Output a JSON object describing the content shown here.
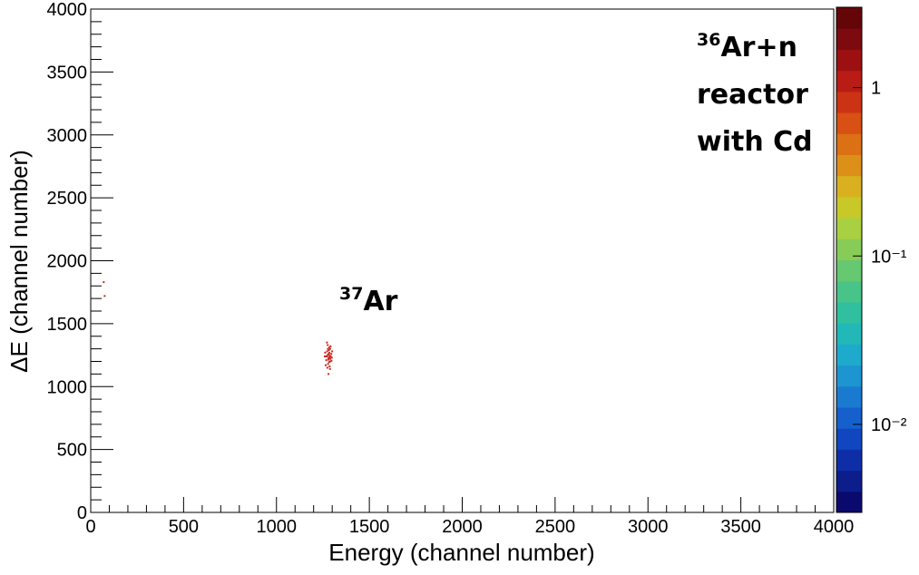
{
  "chart_data": {
    "type": "scatter",
    "x_label": "Energy (channel number)",
    "y_label": "ΔE (channel number)",
    "xlim": [
      0,
      4000
    ],
    "ylim": [
      0,
      4000
    ],
    "xticks": [
      0,
      500,
      1000,
      1500,
      2000,
      2500,
      3000,
      3500,
      4000
    ],
    "yticks": [
      0,
      500,
      1000,
      1500,
      2000,
      2500,
      3000,
      3500,
      4000
    ],
    "minor_divisions": 5,
    "color": "#c8281e",
    "x": [
      1275,
      1280,
      1285,
      1290,
      1270,
      1282,
      1288,
      1278,
      1295,
      1268,
      1284,
      1292,
      1276,
      1286,
      1281,
      1273,
      1289,
      1279,
      1287,
      1283,
      1260,
      1300,
      1265,
      1296,
      1274,
      1291,
      1277,
      1285,
      1280,
      1262,
      1298,
      1272,
      1288,
      1284,
      70,
      75
    ],
    "y": [
      1250,
      1230,
      1270,
      1220,
      1240,
      1290,
      1200,
      1180,
      1260,
      1210,
      1310,
      1240,
      1330,
      1160,
      1260,
      1280,
      1300,
      1215,
      1235,
      1195,
      1240,
      1280,
      1170,
      1205,
      1150,
      1320,
      1300,
      1250,
      1100,
      1270,
      1230,
      1350,
      1140,
      1225,
      1830,
      1720
    ],
    "zlim": [
      0.003,
      3
    ],
    "zlog": true,
    "zticks": [
      1,
      {
        "value": 0.1,
        "label": "10⁻¹"
      },
      {
        "value": 0.01,
        "label": "10⁻²"
      }
    ],
    "colormap": [
      "#0a0a6e",
      "#0c1d8c",
      "#0e2ea8",
      "#1046c0",
      "#1560cc",
      "#1a7ad0",
      "#1c95d0",
      "#1eaacc",
      "#22b8b8",
      "#30c0a0",
      "#48c488",
      "#66c870",
      "#88cc58",
      "#a8d040",
      "#c8c828",
      "#d8b020",
      "#dc9018",
      "#dc7014",
      "#d85014",
      "#cc3214",
      "#b81c14",
      "#9c1012",
      "#7c0a0e",
      "#640608"
    ],
    "annotations": [
      {
        "sup": "36",
        "text": "Ar+n"
      },
      {
        "text": "reactor"
      },
      {
        "text": "with Cd"
      },
      {
        "sup": "37",
        "text": "Ar"
      }
    ]
  }
}
